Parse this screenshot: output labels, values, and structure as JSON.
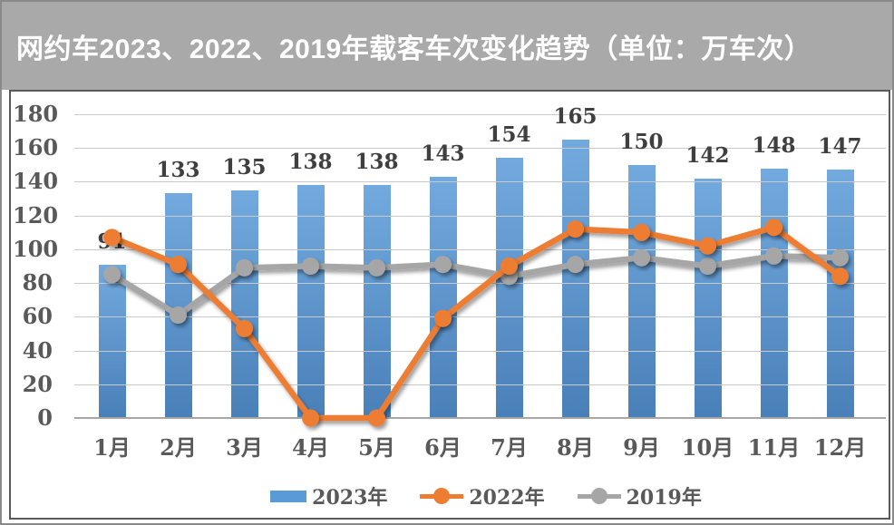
{
  "title": {
    "text": "网约车2023、2022、2019年载客车次变化趋势（单位：万车次）"
  },
  "chart_data": {
    "type": "bar",
    "subtype": "combo-bar-line",
    "title": "网约车2023、2022、2019年载客车次变化趋势（单位：万车次）",
    "unit_label": "万车次",
    "categories": [
      "1月",
      "2月",
      "3月",
      "4月",
      "5月",
      "6月",
      "7月",
      "8月",
      "9月",
      "10月",
      "11月",
      "12月"
    ],
    "series": [
      {
        "name": "2023年",
        "type": "bar",
        "color": "#5B9BD5",
        "values": [
          91,
          133,
          135,
          138,
          138,
          143,
          154,
          165,
          150,
          142,
          148,
          147
        ],
        "data_labels": [
          "91",
          "133",
          "135",
          "138",
          "138",
          "143",
          "154",
          "165",
          "150",
          "142",
          "148",
          "147"
        ]
      },
      {
        "name": "2022年",
        "type": "line",
        "color": "#ED7D31",
        "values": [
          107,
          91,
          53,
          0,
          0,
          59,
          90,
          112,
          110,
          102,
          113,
          84
        ]
      },
      {
        "name": "2019年",
        "type": "line",
        "color": "#A6A6A6",
        "values": [
          85,
          61,
          89,
          90,
          89,
          91,
          84,
          91,
          95,
          90,
          96,
          95
        ]
      }
    ],
    "ylim": [
      0,
      180
    ],
    "ytick_step": 20,
    "yticks": [
      180,
      160,
      140,
      120,
      100,
      80,
      60,
      40,
      20,
      0
    ],
    "grid": "horizontal",
    "legend_position": "bottom",
    "xlabel": "",
    "ylabel": ""
  },
  "colors": {
    "title_bg": "#A9A9A9",
    "title_text": "#FFFFFF",
    "outer_border": "#8A8A8A",
    "frame_border": "#595959",
    "grid_line": "#C9C9C9",
    "axis_line": "#A6A6A6",
    "tick_label": "#595959",
    "data_label": "#3F3F3F",
    "bar_gradient_top": "#72AADF",
    "bar_gradient_bottom": "#4A80B8"
  }
}
